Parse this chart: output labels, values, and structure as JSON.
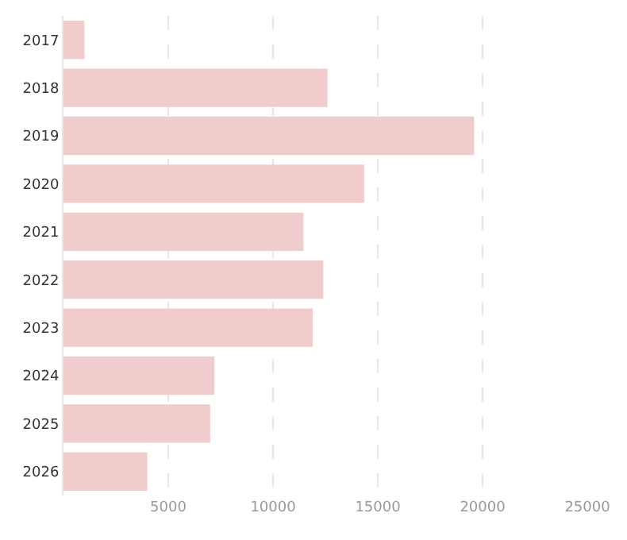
{
  "chart_data": {
    "type": "bar",
    "orientation": "horizontal",
    "categories": [
      "2017",
      "2018",
      "2019",
      "2020",
      "2021",
      "2022",
      "2023",
      "2024",
      "2025",
      "2026"
    ],
    "values": [
      1000,
      12600,
      19600,
      14350,
      11450,
      12400,
      11900,
      7200,
      7000,
      4000
    ],
    "color": "#f0cccc",
    "xlim": [
      0,
      25000
    ],
    "xticks": [
      5000,
      10000,
      15000,
      20000,
      25000
    ],
    "grid": "x",
    "legend": false
  }
}
